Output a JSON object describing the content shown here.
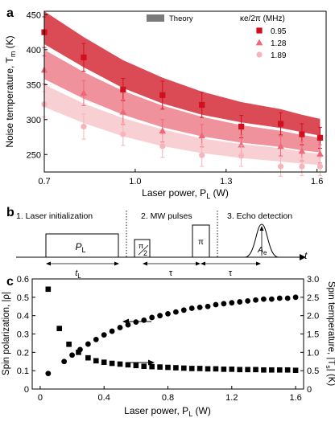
{
  "panels": {
    "a": {
      "letter": "a",
      "ylabel": "Noise temperature, T",
      "ylabel_sub": "m",
      "ylabel_unit": " (K)",
      "xlabel": "Laser power, P",
      "xlabel_sub": "L",
      "xlabel_unit": " (W)",
      "legend_theory": "Theory",
      "legend_title": "κe/2π (MHz)"
    },
    "b": {
      "letter": "b",
      "step1": "1. Laser initialization",
      "step2": "2. MW pulses",
      "step3": "3. Echo detection",
      "pulse_pl": "P",
      "pulse_pl_sub": "L",
      "pulse_pi2_top": "π",
      "pulse_pi2_bottom": "2",
      "pulse_pi": "π",
      "echo": "A",
      "echo_sub": "e",
      "t_axis": "t",
      "tl": "t",
      "tl_sub": "L",
      "tau1": "τ",
      "tau2": "τ"
    },
    "c": {
      "letter": "c",
      "ylabel_left": "Spin polarization, |ρ|",
      "ylabel_right": "Spin temperature, |T",
      "ylabel_right_sub": "s",
      "ylabel_right_unit": "| (K)",
      "xlabel": "Laser power, P",
      "xlabel_sub": "L",
      "xlabel_unit": " (W)"
    }
  },
  "chart_data": [
    {
      "panel": "a",
      "type": "scatter",
      "xlabel": "Laser power, PL (W)",
      "ylabel": "Noise temperature, Tm (K)",
      "xlim": [
        0.7,
        1.63
      ],
      "ylim": [
        225,
        455
      ],
      "xticks": [
        0.7,
        1.0,
        1.3,
        1.6
      ],
      "xtick_labels": [
        "0.7",
        "1.0",
        "1.3",
        "1.6"
      ],
      "yticks": [
        250,
        300,
        350,
        400,
        450
      ],
      "ytick_labels": [
        "250",
        "300",
        "350",
        "400",
        "450"
      ],
      "grid": false,
      "legend_position": "top-right",
      "legend_title": "κe/2π (MHz)",
      "x": [
        0.7,
        0.83,
        0.96,
        1.09,
        1.22,
        1.35,
        1.48,
        1.55,
        1.61
      ],
      "series": [
        {
          "name": "0.95",
          "marker": "square",
          "color": "#d10f1f",
          "values": [
            425,
            389,
            343,
            335,
            321,
            290,
            294,
            279,
            274
          ],
          "errors": [
            22,
            20,
            16,
            20,
            18,
            16,
            16,
            15,
            15
          ],
          "theory_band": {
            "upper": [
              455,
              418,
              385,
              360,
              340,
              325,
              315,
              307,
              301
            ],
            "lower": [
              408,
              375,
              345,
              323,
              307,
              296,
              288,
              282,
              277
            ]
          }
        },
        {
          "name": "1.28",
          "marker": "triangle",
          "color": "#ee6877",
          "values": [
            371,
            338,
            311,
            284,
            277,
            264,
            262,
            255,
            251
          ],
          "errors": [
            20,
            18,
            18,
            16,
            16,
            14,
            14,
            14,
            13
          ],
          "theory_band": {
            "upper": [
              400,
              368,
              341,
              320,
              304,
              292,
              284,
              278,
              274
            ],
            "lower": [
              358,
              330,
              307,
              289,
              276,
              267,
              261,
              256,
              253
            ]
          }
        },
        {
          "name": "1.89",
          "marker": "circle",
          "color": "#f6b4bb",
          "values": [
            322,
            290,
            279,
            262,
            249,
            248,
            233,
            233,
            233
          ],
          "errors": [
            18,
            18,
            16,
            16,
            16,
            15,
            14,
            13,
            13
          ],
          "theory_band": {
            "upper": [
              350,
              323,
              302,
              286,
              273,
              265,
              259,
              254,
              251
            ],
            "lower": [
              318,
              295,
              276,
              262,
              252,
              245,
              240,
              237,
              235
            ]
          }
        }
      ],
      "colors": {
        "band_0_95": "#d8414c",
        "band_1_28": "#ee8c96",
        "band_1_89": "#f8cdd2",
        "theory_legend": "#7a7a7a"
      }
    },
    {
      "panel": "c",
      "type": "scatter",
      "xlabel": "Laser power, PL (W)",
      "ylabel_left": "Spin polarization, |ρ|",
      "ylabel_right": "Spin temperature, |Ts| (K)",
      "xlim": [
        -0.05,
        1.65
      ],
      "ylim_left": [
        0,
        0.6
      ],
      "ylim_right": [
        0,
        3.0
      ],
      "xticks": [
        0,
        0.4,
        0.8,
        1.2,
        1.6
      ],
      "xtick_labels": [
        "0",
        "0.4",
        "0.8",
        "1.2",
        "1.6"
      ],
      "yticks_left": [
        0,
        0.1,
        0.2,
        0.3,
        0.4,
        0.5,
        0.6
      ],
      "ytick_labels_left": [
        "0",
        "0.1",
        "0.2",
        "0.3",
        "0.4",
        "0.5",
        "0.6"
      ],
      "yticks_right": [
        0,
        0.5,
        1.0,
        1.5,
        2.0,
        2.5,
        3.0
      ],
      "ytick_labels_right": [
        "0",
        "0.5",
        "1.0",
        "1.5",
        "2.0",
        "2.5",
        "3.0"
      ],
      "grid": false,
      "series": [
        {
          "name": "Spin polarization",
          "axis": "left",
          "marker": "circle",
          "color": "#000000",
          "x": [
            0.05,
            0.15,
            0.2,
            0.25,
            0.3,
            0.35,
            0.4,
            0.45,
            0.5,
            0.55,
            0.6,
            0.65,
            0.7,
            0.75,
            0.8,
            0.85,
            0.9,
            0.95,
            1.0,
            1.05,
            1.1,
            1.15,
            1.2,
            1.25,
            1.3,
            1.35,
            1.4,
            1.45,
            1.5,
            1.55,
            1.6
          ],
          "values": [
            0.085,
            0.15,
            0.185,
            0.215,
            0.245,
            0.27,
            0.295,
            0.315,
            0.335,
            0.35,
            0.365,
            0.375,
            0.39,
            0.4,
            0.41,
            0.42,
            0.43,
            0.44,
            0.445,
            0.45,
            0.46,
            0.465,
            0.47,
            0.475,
            0.48,
            0.485,
            0.49,
            0.49,
            0.495,
            0.495,
            0.5
          ]
        },
        {
          "name": "Spin temperature",
          "axis": "right",
          "marker": "square",
          "color": "#000000",
          "x": [
            0.05,
            0.12,
            0.18,
            0.24,
            0.3,
            0.35,
            0.4,
            0.45,
            0.5,
            0.55,
            0.6,
            0.65,
            0.7,
            0.75,
            0.8,
            0.85,
            0.9,
            0.95,
            1.0,
            1.05,
            1.1,
            1.15,
            1.2,
            1.25,
            1.3,
            1.35,
            1.4,
            1.45,
            1.5,
            1.55,
            1.6
          ],
          "values": [
            2.72,
            1.65,
            1.22,
            1.0,
            0.85,
            0.77,
            0.73,
            0.7,
            0.68,
            0.66,
            0.64,
            0.62,
            0.61,
            0.6,
            0.59,
            0.58,
            0.57,
            0.56,
            0.56,
            0.55,
            0.55,
            0.54,
            0.54,
            0.53,
            0.53,
            0.53,
            0.52,
            0.52,
            0.52,
            0.52,
            0.51
          ]
        }
      ]
    }
  ]
}
